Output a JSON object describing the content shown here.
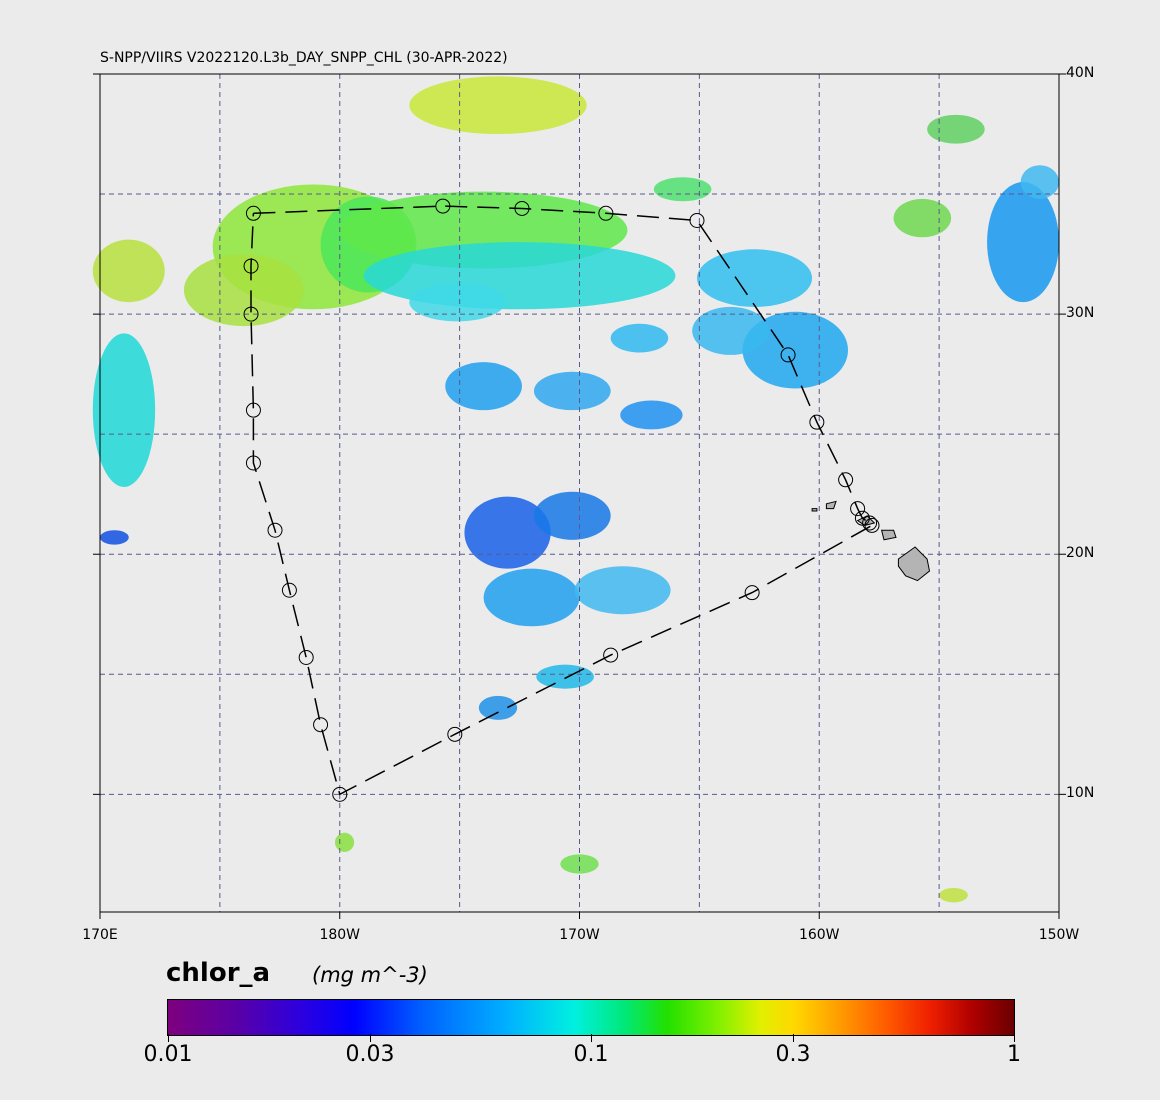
{
  "title": "S-NPP/VIIRS V2022120.L3b_DAY_SNPP_CHL (30-APR-2022)",
  "map": {
    "lon_range": [
      170,
      210
    ],
    "lat_range": [
      5.1,
      40
    ],
    "lat_labels": [
      {
        "value": 40,
        "label": "40N"
      },
      {
        "value": 30,
        "label": "30N"
      },
      {
        "value": 20,
        "label": "20N"
      },
      {
        "value": 10,
        "label": "10N"
      }
    ],
    "lon_labels": [
      {
        "value": 170,
        "label": "170E"
      },
      {
        "value": 180,
        "label": "180W"
      },
      {
        "value": 190,
        "label": "170W"
      },
      {
        "value": 200,
        "label": "160W"
      },
      {
        "value": 210,
        "label": "150W"
      }
    ],
    "gridlines_lon": [
      175,
      180,
      185,
      190,
      195,
      200,
      205
    ],
    "gridlines_lat": [
      35,
      30,
      25,
      20,
      15,
      10
    ],
    "grid_color": "#5a5a8c",
    "land_color": "#b4b4b4",
    "background_color": "#ebebeb",
    "track_points": [
      {
        "lon": 176.4,
        "lat": 34.2
      },
      {
        "lon": 184.3,
        "lat": 34.5
      },
      {
        "lon": 187.6,
        "lat": 34.4
      },
      {
        "lon": 191.1,
        "lat": 34.2
      },
      {
        "lon": 194.9,
        "lat": 33.9
      },
      {
        "lon": 198.7,
        "lat": 28.3
      },
      {
        "lon": 199.9,
        "lat": 25.5
      },
      {
        "lon": 201.1,
        "lat": 23.1
      },
      {
        "lon": 201.6,
        "lat": 21.9
      },
      {
        "lon": 201.8,
        "lat": 21.5
      },
      {
        "lon": 202.1,
        "lat": 21.3
      },
      {
        "lon": 202.2,
        "lat": 21.2
      },
      {
        "lon": 197.2,
        "lat": 18.4
      },
      {
        "lon": 191.3,
        "lat": 15.8
      },
      {
        "lon": 184.8,
        "lat": 12.5
      },
      {
        "lon": 180.0,
        "lat": 10.0
      },
      {
        "lon": 179.2,
        "lat": 12.9
      },
      {
        "lon": 178.6,
        "lat": 15.7
      },
      {
        "lon": 177.9,
        "lat": 18.5
      },
      {
        "lon": 177.3,
        "lat": 21.0
      },
      {
        "lon": 176.4,
        "lat": 23.8
      },
      {
        "lon": 176.4,
        "lat": 26.0
      },
      {
        "lon": 176.3,
        "lat": 30.0
      },
      {
        "lon": 176.3,
        "lat": 32.0
      }
    ],
    "chl_patches": [
      {
        "lon": 178.9,
        "lat": 32.8,
        "rlon": 4.2,
        "rlat": 2.6,
        "color": "#8ee63a"
      },
      {
        "lon": 176.0,
        "lat": 31.0,
        "rlon": 2.5,
        "rlat": 1.5,
        "color": "#a8e040"
      },
      {
        "lon": 171.2,
        "lat": 31.8,
        "rlon": 1.5,
        "rlat": 1.3,
        "color": "#b8e040"
      },
      {
        "lon": 171.0,
        "lat": 26.0,
        "rlon": 1.3,
        "rlat": 3.2,
        "color": "#20d8d8"
      },
      {
        "lon": 170.6,
        "lat": 20.7,
        "rlon": 0.6,
        "rlat": 0.3,
        "color": "#1050e0"
      },
      {
        "lon": 181.2,
        "lat": 32.9,
        "rlon": 2.0,
        "rlat": 2.0,
        "color": "#4ce65a"
      },
      {
        "lon": 186.0,
        "lat": 33.5,
        "rlon": 6.0,
        "rlat": 1.6,
        "color": "#60e84a"
      },
      {
        "lon": 187.5,
        "lat": 31.6,
        "rlon": 6.5,
        "rlat": 1.4,
        "color": "#28d8d8"
      },
      {
        "lon": 184.9,
        "lat": 30.5,
        "rlon": 2.0,
        "rlat": 0.8,
        "color": "#40d8e8"
      },
      {
        "lon": 186.6,
        "lat": 38.7,
        "rlon": 3.7,
        "rlat": 1.2,
        "color": "#c8e838"
      },
      {
        "lon": 194.3,
        "lat": 35.2,
        "rlon": 1.2,
        "rlat": 0.5,
        "color": "#50e070"
      },
      {
        "lon": 197.3,
        "lat": 31.5,
        "rlon": 2.4,
        "rlat": 1.2,
        "color": "#30c0f0"
      },
      {
        "lon": 199.0,
        "lat": 28.5,
        "rlon": 2.2,
        "rlat": 1.6,
        "color": "#20a8f0"
      },
      {
        "lon": 196.3,
        "lat": 29.3,
        "rlon": 1.6,
        "rlat": 1.0,
        "color": "#38b8f0"
      },
      {
        "lon": 192.5,
        "lat": 29.0,
        "rlon": 1.2,
        "rlat": 0.6,
        "color": "#30b8f0"
      },
      {
        "lon": 186.0,
        "lat": 27.0,
        "rlon": 1.6,
        "rlat": 1.0,
        "color": "#20a0f0"
      },
      {
        "lon": 189.7,
        "lat": 26.8,
        "rlon": 1.6,
        "rlat": 0.8,
        "color": "#30a8f0"
      },
      {
        "lon": 193.0,
        "lat": 25.8,
        "rlon": 1.3,
        "rlat": 0.6,
        "color": "#2090f0"
      },
      {
        "lon": 187.0,
        "lat": 20.9,
        "rlon": 1.8,
        "rlat": 1.5,
        "color": "#1860e8"
      },
      {
        "lon": 189.7,
        "lat": 21.6,
        "rlon": 1.6,
        "rlat": 1.0,
        "color": "#1878e8"
      },
      {
        "lon": 188.0,
        "lat": 18.2,
        "rlon": 2.0,
        "rlat": 1.2,
        "color": "#20a0f0"
      },
      {
        "lon": 191.8,
        "lat": 18.5,
        "rlon": 2.0,
        "rlat": 1.0,
        "color": "#40b8f0"
      },
      {
        "lon": 189.4,
        "lat": 14.9,
        "rlon": 1.2,
        "rlat": 0.5,
        "color": "#20b8e8"
      },
      {
        "lon": 186.6,
        "lat": 13.6,
        "rlon": 0.8,
        "rlat": 0.5,
        "color": "#2090e8"
      },
      {
        "lon": 204.3,
        "lat": 34.0,
        "rlon": 1.2,
        "rlat": 0.8,
        "color": "#70d850"
      },
      {
        "lon": 208.5,
        "lat": 33.0,
        "rlon": 1.5,
        "rlat": 2.5,
        "color": "#1898f0"
      },
      {
        "lon": 209.2,
        "lat": 35.5,
        "rlon": 0.8,
        "rlat": 0.7,
        "color": "#40b8f0"
      },
      {
        "lon": 205.7,
        "lat": 37.7,
        "rlon": 1.2,
        "rlat": 0.6,
        "color": "#60d060"
      },
      {
        "lon": 180.2,
        "lat": 8.0,
        "rlon": 0.4,
        "rlat": 0.4,
        "color": "#88e040"
      },
      {
        "lon": 190.0,
        "lat": 7.1,
        "rlon": 0.8,
        "rlat": 0.4,
        "color": "#70e050"
      },
      {
        "lon": 205.6,
        "lat": 5.8,
        "rlon": 0.6,
        "rlat": 0.3,
        "color": "#c0e040"
      }
    ],
    "islands": [
      [
        [
          203.3,
          19.8
        ],
        [
          204.0,
          20.3
        ],
        [
          204.5,
          19.8
        ],
        [
          204.6,
          19.3
        ],
        [
          204.1,
          18.9
        ],
        [
          203.6,
          19.1
        ],
        [
          203.3,
          19.5
        ]
      ],
      [
        [
          202.6,
          21.0
        ],
        [
          203.1,
          21.0
        ],
        [
          203.2,
          20.7
        ],
        [
          202.7,
          20.6
        ]
      ],
      [
        [
          201.6,
          21.4
        ],
        [
          202.0,
          21.6
        ],
        [
          202.3,
          21.3
        ],
        [
          201.9,
          21.2
        ]
      ],
      [
        [
          200.3,
          22.1
        ],
        [
          200.7,
          22.2
        ],
        [
          200.6,
          21.9
        ],
        [
          200.3,
          21.9
        ]
      ],
      [
        [
          199.7,
          21.9
        ],
        [
          199.9,
          21.9
        ],
        [
          199.9,
          21.8
        ],
        [
          199.7,
          21.8
        ]
      ]
    ]
  },
  "colorbar": {
    "variable": "chlor_a",
    "units": "(mg m^-3)",
    "ticks": [
      {
        "value": 0.01,
        "label": "0.01"
      },
      {
        "value": 0.03,
        "label": "0.03"
      },
      {
        "value": 0.1,
        "label": "0.1"
      },
      {
        "value": 0.3,
        "label": "0.3"
      },
      {
        "value": 1,
        "label": "1"
      }
    ],
    "scale": "log",
    "range": [
      0.01,
      1
    ]
  }
}
